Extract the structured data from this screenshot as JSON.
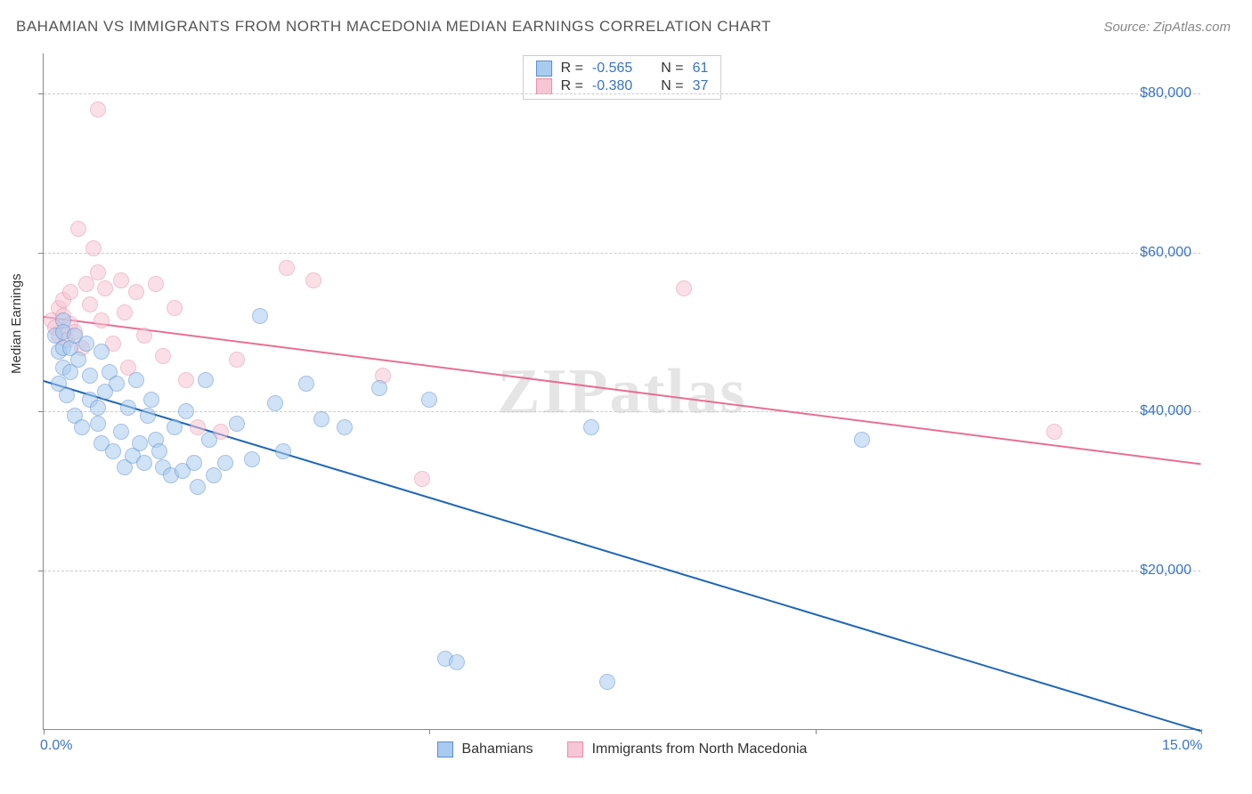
{
  "title": "BAHAMIAN VS IMMIGRANTS FROM NORTH MACEDONIA MEDIAN EARNINGS CORRELATION CHART",
  "source": "Source: ZipAtlas.com",
  "watermark": "ZIPatlas",
  "ylabel": "Median Earnings",
  "series": {
    "blue": {
      "label": "Bahamians",
      "fill": "#a9cbef",
      "stroke": "#5b8fd0",
      "line_color": "#1f66b8",
      "R": "-0.565",
      "N": "61"
    },
    "pink": {
      "label": "Immigrants from North Macedonia",
      "fill": "#f7c6d4",
      "stroke": "#e88fa9",
      "line_color": "#e76f93",
      "R": "-0.380",
      "N": "37"
    }
  },
  "stats_labels": {
    "R": "R =",
    "N": "N ="
  },
  "chart": {
    "type": "scatter",
    "xlim": [
      0,
      15
    ],
    "ylim": [
      0,
      85000
    ],
    "x_ticks": [
      0,
      5,
      10,
      15
    ],
    "x_tick_labels": [
      "0.0%",
      "",
      "",
      "15.0%"
    ],
    "y_gridlines": [
      20000,
      40000,
      60000,
      80000
    ],
    "y_tick_labels": [
      "$20,000",
      "$40,000",
      "$60,000",
      "$80,000"
    ],
    "marker_radius": 9,
    "marker_opacity": 0.55,
    "background_color": "#ffffff",
    "grid_color": "#cccccc",
    "line_width": 2,
    "blue_line": {
      "x1": 0,
      "y1": 44000,
      "x2": 15,
      "y2": 0
    },
    "pink_line": {
      "x1": 0,
      "y1": 52000,
      "x2": 15,
      "y2": 33500
    },
    "blue_points": [
      [
        0.15,
        49500
      ],
      [
        0.2,
        47500
      ],
      [
        0.2,
        43500
      ],
      [
        0.25,
        51500
      ],
      [
        0.25,
        50000
      ],
      [
        0.25,
        48000
      ],
      [
        0.25,
        45500
      ],
      [
        0.3,
        42000
      ],
      [
        0.35,
        48000
      ],
      [
        0.35,
        45000
      ],
      [
        0.4,
        39500
      ],
      [
        0.4,
        49500
      ],
      [
        0.45,
        46500
      ],
      [
        0.5,
        38000
      ],
      [
        0.55,
        48500
      ],
      [
        0.6,
        41500
      ],
      [
        0.6,
        44500
      ],
      [
        0.7,
        40500
      ],
      [
        0.7,
        38500
      ],
      [
        0.75,
        36000
      ],
      [
        0.75,
        47500
      ],
      [
        0.8,
        42500
      ],
      [
        0.85,
        45000
      ],
      [
        0.9,
        35000
      ],
      [
        0.95,
        43500
      ],
      [
        1.0,
        37500
      ],
      [
        1.05,
        33000
      ],
      [
        1.1,
        40500
      ],
      [
        1.15,
        34500
      ],
      [
        1.2,
        44000
      ],
      [
        1.25,
        36000
      ],
      [
        1.3,
        33500
      ],
      [
        1.35,
        39500
      ],
      [
        1.4,
        41500
      ],
      [
        1.45,
        36500
      ],
      [
        1.5,
        35000
      ],
      [
        1.55,
        33000
      ],
      [
        1.65,
        32000
      ],
      [
        1.7,
        38000
      ],
      [
        1.8,
        32500
      ],
      [
        1.85,
        40000
      ],
      [
        1.95,
        33500
      ],
      [
        2.0,
        30500
      ],
      [
        2.1,
        44000
      ],
      [
        2.15,
        36500
      ],
      [
        2.2,
        32000
      ],
      [
        2.35,
        33500
      ],
      [
        2.5,
        38500
      ],
      [
        2.7,
        34000
      ],
      [
        2.8,
        52000
      ],
      [
        3.0,
        41000
      ],
      [
        3.1,
        35000
      ],
      [
        3.4,
        43500
      ],
      [
        3.6,
        39000
      ],
      [
        3.9,
        38000
      ],
      [
        4.35,
        43000
      ],
      [
        5.0,
        41500
      ],
      [
        5.2,
        9000
      ],
      [
        5.35,
        8500
      ],
      [
        7.1,
        38000
      ],
      [
        7.3,
        6000
      ],
      [
        10.6,
        36500
      ]
    ],
    "pink_points": [
      [
        0.1,
        51500
      ],
      [
        0.15,
        50500
      ],
      [
        0.2,
        49500
      ],
      [
        0.2,
        53000
      ],
      [
        0.25,
        54000
      ],
      [
        0.25,
        52000
      ],
      [
        0.3,
        49000
      ],
      [
        0.35,
        51000
      ],
      [
        0.35,
        55000
      ],
      [
        0.4,
        50000
      ],
      [
        0.45,
        63000
      ],
      [
        0.5,
        48000
      ],
      [
        0.55,
        56000
      ],
      [
        0.6,
        53500
      ],
      [
        0.65,
        60500
      ],
      [
        0.7,
        78000
      ],
      [
        0.7,
        57500
      ],
      [
        0.75,
        51500
      ],
      [
        0.8,
        55500
      ],
      [
        0.9,
        48500
      ],
      [
        1.0,
        56500
      ],
      [
        1.05,
        52500
      ],
      [
        1.1,
        45500
      ],
      [
        1.2,
        55000
      ],
      [
        1.3,
        49500
      ],
      [
        1.45,
        56000
      ],
      [
        1.55,
        47000
      ],
      [
        1.7,
        53000
      ],
      [
        1.85,
        44000
      ],
      [
        2.0,
        38000
      ],
      [
        2.3,
        37500
      ],
      [
        2.5,
        46500
      ],
      [
        3.15,
        58000
      ],
      [
        3.5,
        56500
      ],
      [
        4.4,
        44500
      ],
      [
        4.9,
        31500
      ],
      [
        8.3,
        55500
      ],
      [
        13.1,
        37500
      ]
    ]
  }
}
